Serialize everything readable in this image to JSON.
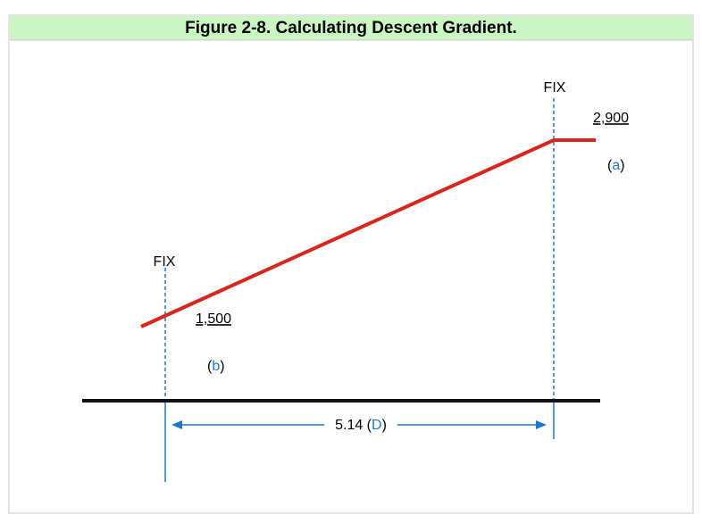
{
  "title": "Figure 2-8.  Calculating Descent Gradient.",
  "fixes": [
    {
      "label": "FIX",
      "altitude": "2,900",
      "note": "(a)"
    },
    {
      "label": "FIX",
      "altitude": "1,500",
      "note": "(b)"
    }
  ],
  "distance": "5.14 (D)"
}
